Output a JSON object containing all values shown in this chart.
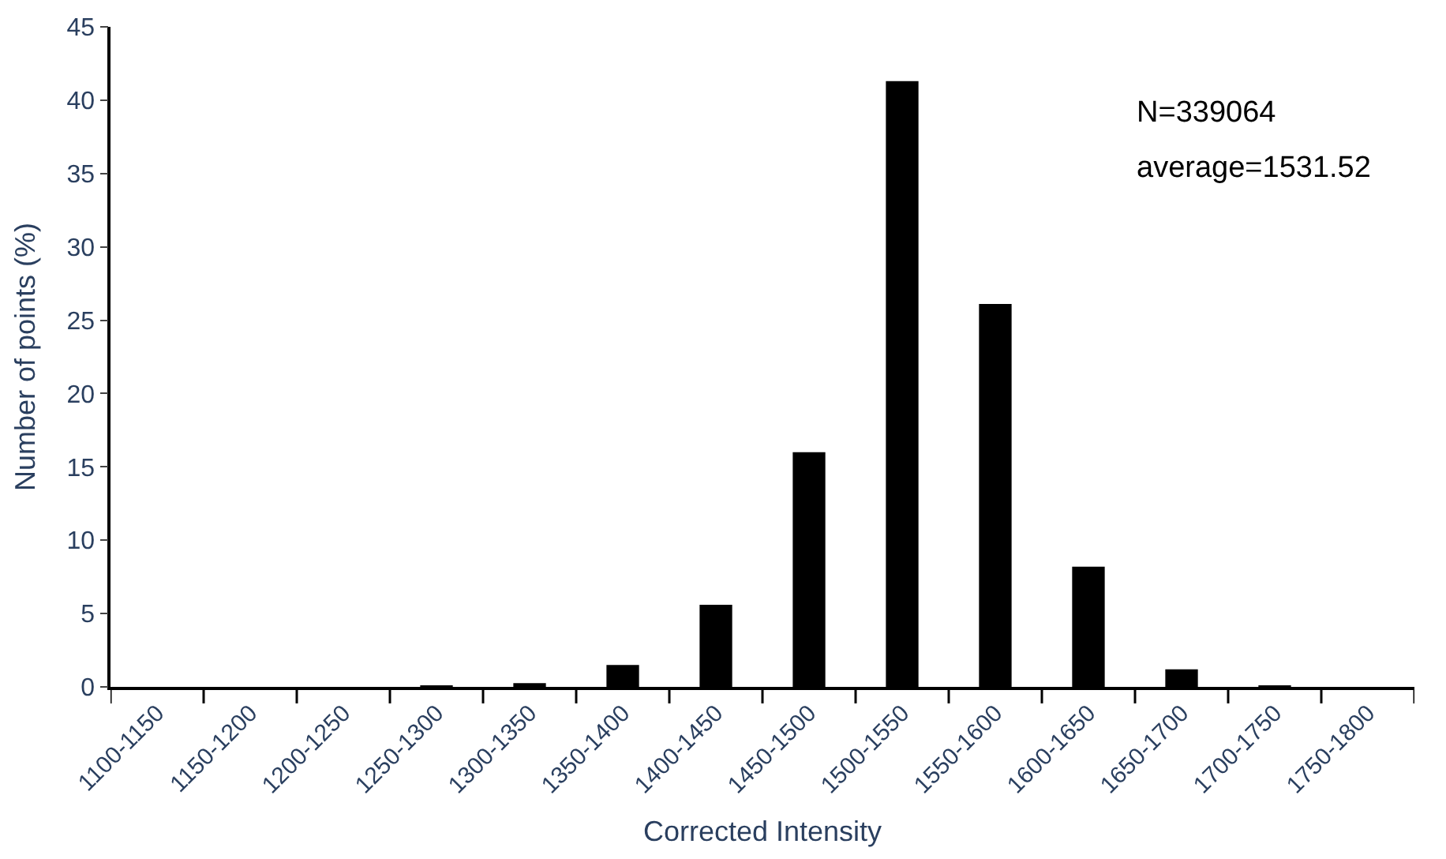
{
  "chart_data": {
    "type": "bar",
    "categories": [
      "1100-1150",
      "1150-1200",
      "1200-1250",
      "1250-1300",
      "1300-1350",
      "1350-1400",
      "1400-1450",
      "1450-1500",
      "1500-1550",
      "1550-1600",
      "1600-1650",
      "1650-1700",
      "1700-1750",
      "1750-1800"
    ],
    "values": [
      0,
      0,
      0,
      0.05,
      0.25,
      1.5,
      5.6,
      16,
      41.3,
      26.1,
      8.2,
      1.2,
      0.05,
      0
    ],
    "color": "#000000",
    "xlabel": "Corrected Intensity",
    "ylabel": "Number of points (%)",
    "ylim": [
      0,
      45
    ],
    "yticks": [
      0,
      5,
      10,
      15,
      20,
      25,
      30,
      35,
      40,
      45
    ],
    "annotations": [
      "N=339064",
      "average=1531.52"
    ],
    "grid": false
  }
}
